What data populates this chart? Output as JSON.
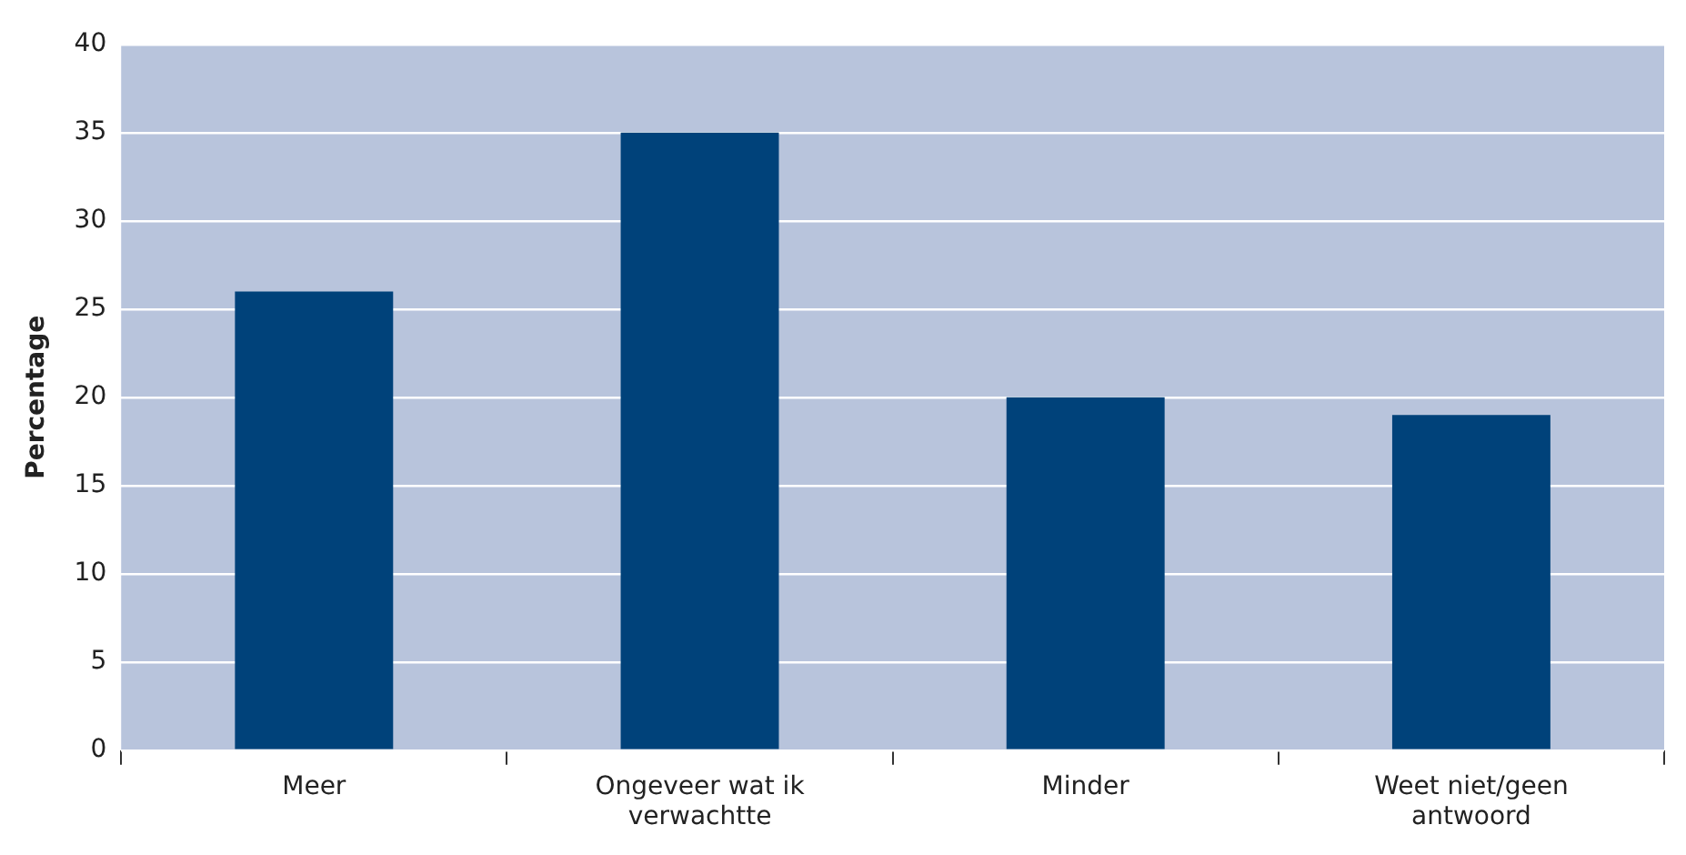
{
  "chart_data": {
    "type": "bar",
    "ylabel": "Percentage",
    "categories": [
      "Meer",
      "Ongeveer wat ik verwachtte",
      "Minder",
      "Weet niet/geen antwoord"
    ],
    "values": [
      26,
      35,
      20,
      19
    ],
    "color": "#00427a",
    "ylim": [
      0,
      40
    ],
    "yticks": [
      0,
      5,
      10,
      15,
      20,
      25,
      30,
      35,
      40
    ],
    "grid": "y",
    "legend": false
  }
}
